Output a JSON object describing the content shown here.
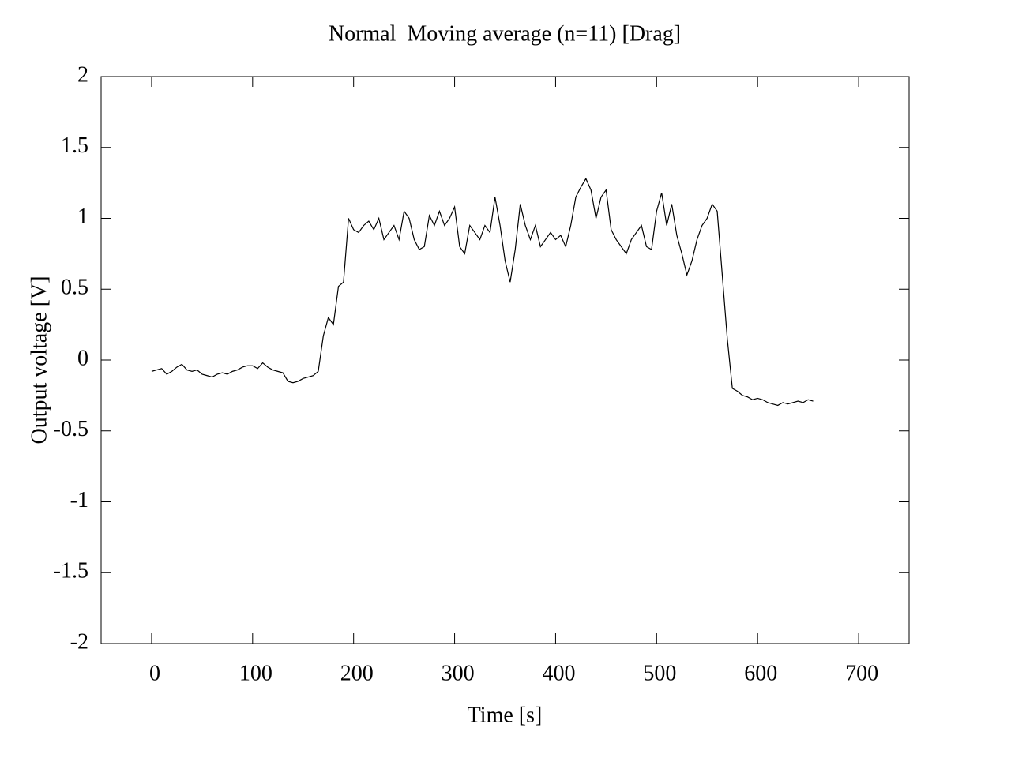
{
  "chart_data": {
    "type": "line",
    "title": "Normal  Moving average (n=11) [Drag]",
    "x_label": "Time [s]",
    "y_label": "Output voltage [V]",
    "xlim": [
      -50,
      750
    ],
    "ylim": [
      -2,
      2
    ],
    "xticks": [
      0,
      100,
      200,
      300,
      400,
      500,
      600,
      700
    ],
    "yticks": [
      -2,
      -1.5,
      -1,
      -0.5,
      0,
      0.5,
      1,
      1.5,
      2
    ],
    "series": [
      {
        "color": "#000000",
        "x": [
          0,
          5,
          10,
          15,
          20,
          25,
          30,
          35,
          40,
          45,
          50,
          55,
          60,
          65,
          70,
          75,
          80,
          85,
          90,
          95,
          100,
          105,
          110,
          115,
          120,
          125,
          130,
          135,
          140,
          145,
          150,
          155,
          160,
          165,
          170,
          175,
          180,
          185,
          190,
          195,
          200,
          205,
          210,
          215,
          220,
          225,
          230,
          235,
          240,
          245,
          250,
          255,
          260,
          265,
          270,
          275,
          280,
          285,
          290,
          295,
          300,
          305,
          310,
          315,
          320,
          325,
          330,
          335,
          340,
          345,
          350,
          355,
          360,
          365,
          370,
          375,
          380,
          385,
          390,
          395,
          400,
          405,
          410,
          415,
          420,
          425,
          430,
          435,
          440,
          445,
          450,
          455,
          460,
          465,
          470,
          475,
          480,
          485,
          490,
          495,
          500,
          505,
          510,
          515,
          520,
          525,
          530,
          535,
          540,
          545,
          550,
          555,
          560,
          565,
          570,
          575,
          580,
          585,
          590,
          595,
          600,
          605,
          610,
          615,
          620,
          625,
          630,
          635,
          640,
          645,
          650,
          655
        ],
        "values": [
          -0.08,
          -0.07,
          -0.06,
          -0.1,
          -0.08,
          -0.05,
          -0.03,
          -0.07,
          -0.08,
          -0.07,
          -0.1,
          -0.11,
          -0.12,
          -0.1,
          -0.09,
          -0.1,
          -0.08,
          -0.07,
          -0.05,
          -0.04,
          -0.04,
          -0.06,
          -0.02,
          -0.05,
          -0.07,
          -0.08,
          -0.09,
          -0.15,
          -0.16,
          -0.15,
          -0.13,
          -0.12,
          -0.11,
          -0.08,
          0.17,
          0.3,
          0.25,
          0.52,
          0.55,
          1.0,
          0.92,
          0.9,
          0.95,
          0.98,
          0.92,
          1.0,
          0.85,
          0.9,
          0.95,
          0.85,
          1.05,
          1.0,
          0.85,
          0.78,
          0.8,
          1.02,
          0.95,
          1.05,
          0.95,
          1.0,
          1.08,
          0.8,
          0.75,
          0.95,
          0.9,
          0.85,
          0.95,
          0.9,
          1.15,
          0.95,
          0.7,
          0.55,
          0.78,
          1.1,
          0.95,
          0.85,
          0.95,
          0.8,
          0.85,
          0.9,
          0.85,
          0.88,
          0.8,
          0.95,
          1.15,
          1.22,
          1.28,
          1.2,
          1.0,
          1.15,
          1.2,
          0.92,
          0.85,
          0.8,
          0.75,
          0.85,
          0.9,
          0.95,
          0.8,
          0.78,
          1.05,
          1.18,
          0.95,
          1.1,
          0.88,
          0.75,
          0.6,
          0.7,
          0.85,
          0.95,
          1.0,
          1.1,
          1.05,
          0.6,
          0.15,
          -0.2,
          -0.22,
          -0.25,
          -0.26,
          -0.28,
          -0.27,
          -0.28,
          -0.3,
          -0.31,
          -0.32,
          -0.3,
          -0.31,
          -0.3,
          -0.29,
          -0.3,
          -0.28,
          -0.29
        ]
      }
    ]
  }
}
